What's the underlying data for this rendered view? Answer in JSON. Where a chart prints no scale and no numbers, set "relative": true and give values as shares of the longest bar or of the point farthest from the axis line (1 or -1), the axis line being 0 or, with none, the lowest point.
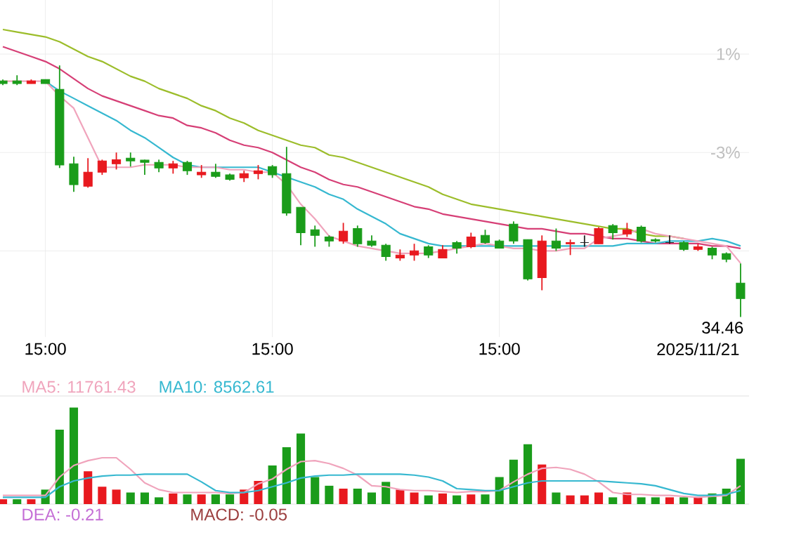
{
  "chart_data": [
    {
      "type": "candlestick",
      "categories": [
        null,
        null,
        null,
        "15:00",
        null,
        null,
        null,
        null,
        null,
        null,
        null,
        null,
        null,
        null,
        null,
        null,
        null,
        null,
        null,
        "15:00",
        null,
        null,
        null,
        null,
        null,
        null,
        null,
        null,
        null,
        null,
        null,
        null,
        null,
        null,
        null,
        "15:00",
        null,
        null,
        null,
        null,
        null,
        null,
        null,
        null,
        null,
        null,
        null,
        null,
        null,
        "2025/11/21",
        null,
        null,
        null
      ],
      "ohlc": [
        [
          -0.09,
          -0.03,
          -0.26,
          -0.2
        ],
        [
          -0.09,
          0.14,
          -0.26,
          -0.2
        ],
        [
          -0.2,
          -0.03,
          -0.2,
          -0.09
        ],
        [
          -0.03,
          -0.03,
          -0.2,
          -0.2
        ],
        [
          -0.43,
          0.54,
          -3.63,
          -3.51
        ],
        [
          -3.46,
          -3.17,
          -4.6,
          -4.31
        ],
        [
          -4.37,
          -3.23,
          -4.43,
          -3.8
        ],
        [
          -3.8,
          -3.29,
          -3.91,
          -3.34
        ],
        [
          -3.46,
          -3.0,
          -3.69,
          -3.29
        ],
        [
          -3.23,
          -3.0,
          -3.57,
          -3.34
        ],
        [
          -3.31,
          -3.29,
          -3.91,
          -3.4
        ],
        [
          -3.4,
          -3.29,
          -3.8,
          -3.63
        ],
        [
          -3.63,
          -3.34,
          -3.86,
          -3.46
        ],
        [
          -3.4,
          -3.34,
          -3.91,
          -3.74
        ],
        [
          -3.91,
          -3.51,
          -4.03,
          -3.8
        ],
        [
          -3.8,
          -3.46,
          -4.03,
          -3.97
        ],
        [
          -3.91,
          -3.86,
          -4.14,
          -4.09
        ],
        [
          -4.03,
          -3.74,
          -4.2,
          -3.86
        ],
        [
          -3.86,
          -3.51,
          -4.09,
          -3.74
        ],
        [
          -3.57,
          -3.51,
          -4.03,
          -3.91
        ],
        [
          -3.86,
          -2.77,
          -5.57,
          -5.46
        ],
        [
          -5.23,
          -5.23,
          -6.77,
          -6.26
        ],
        [
          -6.14,
          -5.97,
          -6.83,
          -6.37
        ],
        [
          -6.43,
          -6.37,
          -6.83,
          -6.6
        ],
        [
          -6.6,
          -5.86,
          -6.71,
          -6.2
        ],
        [
          -6.09,
          -5.97,
          -6.83,
          -6.71
        ],
        [
          -6.6,
          -6.37,
          -6.83,
          -6.77
        ],
        [
          -6.77,
          -6.71,
          -7.4,
          -7.23
        ],
        [
          -7.29,
          -6.94,
          -7.4,
          -7.17
        ],
        [
          -7.17,
          -6.71,
          -7.4,
          -7.0
        ],
        [
          -6.83,
          -6.77,
          -7.29,
          -7.17
        ],
        [
          -7.29,
          -6.77,
          -7.29,
          -6.94
        ],
        [
          -6.66,
          -6.6,
          -7.11,
          -6.89
        ],
        [
          -6.83,
          -6.26,
          -6.89,
          -6.43
        ],
        [
          -6.37,
          -6.14,
          -6.71,
          -6.66
        ],
        [
          -6.6,
          -6.54,
          -6.89,
          -6.89
        ],
        [
          -5.91,
          -5.8,
          -6.71,
          -6.6
        ],
        [
          -6.54,
          -6.54,
          -8.2,
          -8.14
        ],
        [
          -8.09,
          -6.37,
          -8.6,
          -6.6
        ],
        [
          -6.6,
          -6.09,
          -7.0,
          -6.89
        ],
        [
          -6.71,
          -6.54,
          -7.17,
          -6.66
        ],
        [
          -6.66,
          -6.37,
          -6.83,
          -6.66
        ],
        [
          -6.71,
          -6.03,
          -6.71,
          -6.09
        ],
        [
          -5.97,
          -5.91,
          -6.54,
          -6.26
        ],
        [
          -6.31,
          -5.86,
          -6.43,
          -6.14
        ],
        [
          -6.03,
          -5.97,
          -6.66,
          -6.6
        ],
        [
          -6.54,
          -6.49,
          -6.66,
          -6.6
        ],
        [
          -6.66,
          -6.37,
          -6.71,
          -6.66
        ],
        [
          -6.66,
          -6.6,
          -7.0,
          -6.94
        ],
        [
          -6.94,
          -6.71,
          -7.0,
          -6.83
        ],
        [
          -6.89,
          -6.83,
          -7.34,
          -7.17
        ],
        [
          -7.11,
          -7.06,
          -7.46,
          -7.34
        ],
        [
          -8.31,
          -7.51,
          -9.69,
          -8.94
        ]
      ],
      "colors": [
        "#1a9c1a",
        "#1a9c1a",
        "#e8191f",
        "#1a9c1a",
        "#1a9c1a",
        "#1a9c1a",
        "#e8191f",
        "#e8191f",
        "#e8191f",
        "#1a9c1a",
        "#1a9c1a",
        "#1a9c1a",
        "#e8191f",
        "#1a9c1a",
        "#e8191f",
        "#1a9c1a",
        "#1a9c1a",
        "#e8191f",
        "#e8191f",
        "#1a9c1a",
        "#1a9c1a",
        "#1a9c1a",
        "#1a9c1a",
        "#1a9c1a",
        "#e8191f",
        "#1a9c1a",
        "#1a9c1a",
        "#1a9c1a",
        "#e8191f",
        "#e8191f",
        "#1a9c1a",
        "#e8191f",
        "#1a9c1a",
        "#e8191f",
        "#1a9c1a",
        "#1a9c1a",
        "#1a9c1a",
        "#1a9c1a",
        "#e8191f",
        "#1a9c1a",
        "#e8191f",
        "#222222",
        "#e8191f",
        "#1a9c1a",
        "#e8191f",
        "#1a9c1a",
        "#1a9c1a",
        "#222222",
        "#1a9c1a",
        "#e8191f",
        "#1a9c1a",
        "#1a9c1a",
        "#1a9c1a"
      ],
      "series": [
        {
          "type": "line",
          "color": "#9cbd2a",
          "values": [
            2.0,
            1.9,
            1.8,
            1.7,
            1.5,
            1.2,
            0.9,
            0.7,
            0.4,
            0.1,
            -0.1,
            -0.4,
            -0.6,
            -0.8,
            -1.1,
            -1.3,
            -1.6,
            -1.8,
            -2.1,
            -2.3,
            -2.5,
            -2.7,
            -2.8,
            -3.1,
            -3.2,
            -3.4,
            -3.6,
            -3.8,
            -4.0,
            -4.2,
            -4.4,
            -4.7,
            -4.9,
            -5.1,
            -5.2,
            -5.3,
            -5.4,
            -5.5,
            -5.6,
            -5.7,
            -5.8,
            -5.9,
            -6.0,
            -6.1,
            -6.1,
            -6.3,
            -6.4,
            -6.4,
            -6.5,
            null,
            null,
            null,
            null
          ]
        },
        {
          "type": "line",
          "color": "#d63f76",
          "values": [
            1.3,
            1.1,
            0.9,
            0.7,
            0.4,
            0.0,
            -0.4,
            -0.7,
            -0.9,
            -1.1,
            -1.3,
            -1.5,
            -1.6,
            -1.9,
            -2.0,
            -2.2,
            -2.5,
            -2.7,
            -2.8,
            -3.0,
            -3.3,
            -3.6,
            -3.8,
            -4.1,
            -4.3,
            -4.4,
            -4.6,
            -4.8,
            -5.0,
            -5.2,
            -5.3,
            -5.5,
            -5.6,
            -5.7,
            -5.8,
            -5.9,
            -6.0,
            -6.1,
            -6.1,
            -6.2,
            -6.3,
            -6.3,
            -6.4,
            -6.5,
            -6.5,
            -6.6,
            -6.7,
            -6.7,
            -6.7,
            -6.7,
            -6.8,
            -6.8,
            -6.9
          ]
        },
        {
          "type": "line",
          "color": "#36b8d0",
          "values": [
            null,
            null,
            null,
            -0.1,
            -0.5,
            -0.8,
            -1.1,
            -1.4,
            -1.7,
            -2.1,
            -2.4,
            -2.8,
            -3.2,
            -3.5,
            -3.6,
            -3.6,
            -3.6,
            -3.6,
            -3.6,
            -3.8,
            -4.0,
            -4.2,
            -4.4,
            -4.7,
            -4.9,
            -5.3,
            -5.6,
            -5.9,
            -6.3,
            -6.5,
            -6.7,
            -6.8,
            -6.8,
            -6.8,
            -6.8,
            -6.8,
            -6.8,
            -6.8,
            -6.8,
            -6.8,
            -6.8,
            -6.8,
            -6.8,
            -6.8,
            -6.7,
            -6.7,
            -6.7,
            -6.6,
            -6.6,
            -6.6,
            -6.5,
            -6.6,
            -6.8
          ]
        },
        {
          "type": "line",
          "color": "#f0a4bc",
          "values": [
            -0.1,
            -0.1,
            -0.1,
            -0.1,
            -0.7,
            -1.2,
            -2.4,
            -3.6,
            -3.6,
            -3.6,
            -3.5,
            -3.5,
            -3.5,
            -3.6,
            -3.6,
            -3.6,
            -3.7,
            -3.7,
            -3.8,
            -3.8,
            -4.3,
            -5.1,
            -5.7,
            -6.4,
            -6.6,
            -6.8,
            -6.9,
            -7.0,
            -7.1,
            -7.1,
            -7.1,
            -7.0,
            -6.9,
            -6.8,
            -6.7,
            -6.8,
            -6.9,
            -6.9,
            -7.0,
            -7.0,
            -6.9,
            -6.9,
            -6.5,
            -6.4,
            -6.3,
            -6.1,
            -6.3,
            -6.4,
            -6.5,
            -6.6,
            -6.7,
            -6.8,
            -7.5
          ]
        }
      ],
      "ylim": [
        -10.5,
        3.2
      ],
      "yticks": [
        {
          "value": 1,
          "label": "1%"
        },
        {
          "value": -3,
          "label": "-3%"
        },
        {
          "value": -7,
          "label": null
        }
      ],
      "grid": true,
      "annotations": [
        "34.46"
      ]
    },
    {
      "type": "bar",
      "relative": true,
      "categories": [
        null,
        null,
        null,
        null,
        null,
        null,
        null,
        null,
        null,
        null,
        null,
        null,
        null,
        null,
        null,
        null,
        null,
        null,
        null,
        null,
        null,
        null,
        null,
        null,
        null,
        null,
        null,
        null,
        null,
        null,
        null,
        null,
        null,
        null,
        null,
        null,
        null,
        null,
        null,
        null,
        null,
        null,
        null,
        null,
        null,
        null,
        null,
        null,
        null,
        null,
        null,
        null,
        null
      ],
      "values": [
        0.05,
        0.05,
        0.05,
        0.15,
        0.77,
        1,
        0.34,
        0.18,
        0.15,
        0.12,
        0.12,
        0.07,
        0.11,
        0.1,
        0.1,
        0.1,
        0.1,
        0.15,
        0.24,
        0.4,
        0.59,
        0.73,
        0.28,
        0.19,
        0.16,
        0.16,
        0.12,
        0.23,
        0.15,
        0.12,
        0.09,
        0.11,
        0.09,
        0.1,
        0.1,
        0.28,
        0.46,
        0.62,
        0.41,
        0.12,
        0.09,
        0.09,
        0.12,
        0.07,
        0.12,
        0.07,
        0.07,
        0.07,
        0.07,
        0.07,
        0.11,
        0.16,
        0.47
      ],
      "colors": [
        "#e8191f",
        "#1a9c1a",
        "#e8191f",
        "#1a9c1a",
        "#1a9c1a",
        "#1a9c1a",
        "#e8191f",
        "#e8191f",
        "#e8191f",
        "#1a9c1a",
        "#1a9c1a",
        "#1a9c1a",
        "#e8191f",
        "#1a9c1a",
        "#e8191f",
        "#1a9c1a",
        "#1a9c1a",
        "#e8191f",
        "#e8191f",
        "#1a9c1a",
        "#1a9c1a",
        "#1a9c1a",
        "#1a9c1a",
        "#1a9c1a",
        "#e8191f",
        "#1a9c1a",
        "#1a9c1a",
        "#1a9c1a",
        "#e8191f",
        "#e8191f",
        "#1a9c1a",
        "#e8191f",
        "#1a9c1a",
        "#e8191f",
        "#1a9c1a",
        "#1a9c1a",
        "#1a9c1a",
        "#1a9c1a",
        "#e8191f",
        "#1a9c1a",
        "#e8191f",
        "#e8191f",
        "#e8191f",
        "#1a9c1a",
        "#e8191f",
        "#1a9c1a",
        "#1a9c1a",
        "#e8191f",
        "#1a9c1a",
        "#e8191f",
        "#1a9c1a",
        "#1a9c1a",
        "#1a9c1a"
      ],
      "series": [
        {
          "type": "line",
          "name": "MA5: 11761.43",
          "color": "#f0a4bc",
          "values": [
            0.09,
            0.09,
            0.09,
            0.09,
            0.28,
            0.4,
            0.45,
            0.48,
            0.48,
            0.36,
            0.22,
            0.15,
            0.12,
            0.12,
            0.12,
            0.12,
            0.11,
            0.12,
            0.21,
            0.26,
            0.36,
            0.44,
            0.45,
            0.42,
            0.37,
            0.3,
            0.19,
            0.18,
            0.15,
            0.14,
            0.14,
            0.13,
            0.12,
            0.13,
            0.13,
            0.14,
            0.23,
            0.31,
            0.37,
            0.38,
            0.36,
            0.31,
            0.23,
            0.12,
            0.1,
            0.1,
            0.09,
            0.09,
            0.08,
            0.07,
            0.08,
            0.09,
            0.19
          ]
        },
        {
          "type": "line",
          "name": "MA10: 8562.61",
          "color": "#36b8d0",
          "values": [
            0.07,
            0.07,
            0.07,
            0.07,
            0.18,
            0.24,
            0.27,
            0.29,
            0.3,
            0.3,
            0.31,
            0.31,
            0.31,
            0.31,
            0.23,
            0.14,
            0.12,
            0.12,
            0.14,
            0.18,
            0.22,
            0.27,
            0.29,
            0.3,
            0.3,
            0.31,
            0.31,
            0.31,
            0.31,
            0.3,
            0.28,
            0.24,
            0.16,
            0.15,
            0.14,
            0.14,
            0.18,
            0.22,
            0.24,
            0.24,
            0.24,
            0.24,
            0.24,
            0.23,
            0.22,
            0.21,
            0.19,
            0.15,
            0.11,
            0.09,
            0.09,
            0.1,
            0.14
          ]
        }
      ],
      "legend": "top left",
      "annotations": [
        "DEA: -0.21",
        "MACD: -0.05"
      ]
    }
  ]
}
